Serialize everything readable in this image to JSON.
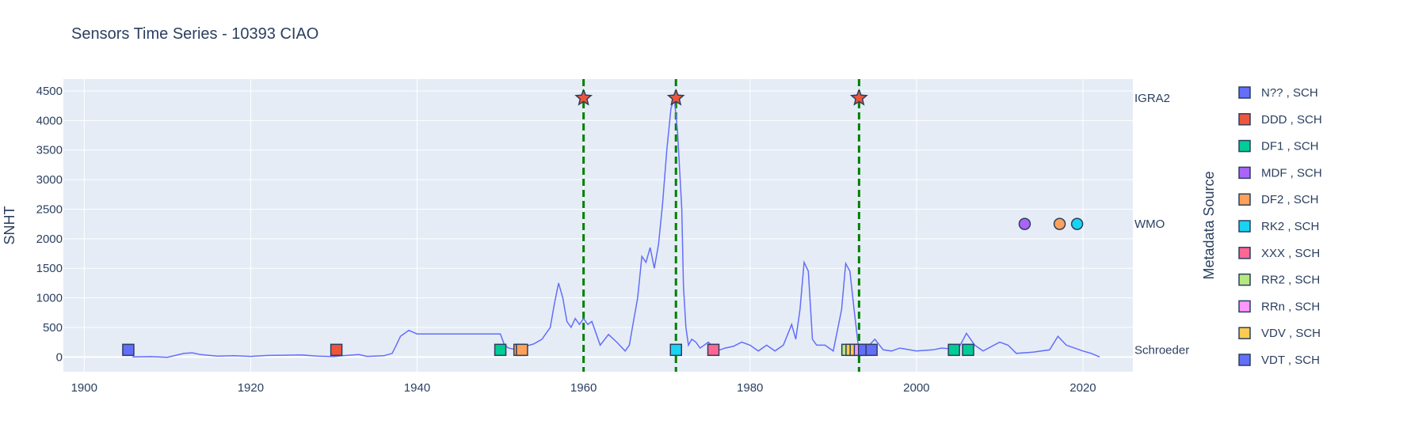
{
  "chart_data": {
    "type": "line",
    "title": "Sensors Time Series - 10393 CIAO",
    "xlabel": "",
    "ylabel": "SNHT",
    "xlim": [
      1897.5,
      2026
    ],
    "ylim": [
      -250,
      4700
    ],
    "x_ticks": [
      1900,
      1920,
      1940,
      1960,
      1980,
      2000,
      2020
    ],
    "y_ticks": [
      0,
      500,
      1000,
      1500,
      2000,
      2500,
      3000,
      3500,
      4000,
      4500
    ],
    "grid": true,
    "legend_title": "Metadata Source",
    "legend_position": "right",
    "colors": {
      "plot_bg": "#E5ECF6",
      "line": "#636EFA",
      "vline": "#008000",
      "marker_edge": "#2a3f5f"
    },
    "series": [
      {
        "type": "line",
        "points": [
          [
            1905.8,
            0
          ],
          [
            1908,
            5
          ],
          [
            1910,
            -5
          ],
          [
            1912,
            60
          ],
          [
            1913,
            70
          ],
          [
            1914,
            40
          ],
          [
            1916,
            15
          ],
          [
            1918,
            20
          ],
          [
            1920,
            10
          ],
          [
            1922,
            25
          ],
          [
            1924,
            30
          ],
          [
            1926,
            35
          ],
          [
            1928,
            15
          ],
          [
            1930,
            5
          ],
          [
            1931,
            20
          ],
          [
            1933,
            40
          ],
          [
            1934,
            10
          ],
          [
            1936,
            20
          ],
          [
            1937,
            60
          ],
          [
            1937.5,
            200
          ],
          [
            1938,
            350
          ],
          [
            1939,
            450
          ],
          [
            1940,
            390
          ],
          [
            1945,
            390
          ],
          [
            1950,
            390
          ],
          [
            1950.5,
            200
          ],
          [
            1951,
            150
          ],
          [
            1952,
            120
          ],
          [
            1953,
            180
          ],
          [
            1954,
            220
          ],
          [
            1955,
            300
          ],
          [
            1956,
            500
          ],
          [
            1956.5,
            900
          ],
          [
            1957,
            1250
          ],
          [
            1957.5,
            1000
          ],
          [
            1958,
            600
          ],
          [
            1958.5,
            500
          ],
          [
            1959,
            650
          ],
          [
            1959.5,
            550
          ],
          [
            1960,
            650
          ],
          [
            1960.5,
            550
          ],
          [
            1961,
            600
          ],
          [
            1962,
            200
          ],
          [
            1963,
            380
          ],
          [
            1964,
            250
          ],
          [
            1965,
            100
          ],
          [
            1965.5,
            200
          ],
          [
            1966,
            600
          ],
          [
            1966.5,
            1000
          ],
          [
            1967,
            1700
          ],
          [
            1967.5,
            1600
          ],
          [
            1968,
            1850
          ],
          [
            1968.5,
            1500
          ],
          [
            1969,
            1900
          ],
          [
            1969.5,
            2600
          ],
          [
            1970,
            3500
          ],
          [
            1970.5,
            4200
          ],
          [
            1970.9,
            4380
          ],
          [
            1971.3,
            3800
          ],
          [
            1971.8,
            2500
          ],
          [
            1972,
            1200
          ],
          [
            1972.3,
            500
          ],
          [
            1972.6,
            200
          ],
          [
            1973,
            300
          ],
          [
            1973.5,
            250
          ],
          [
            1974,
            150
          ],
          [
            1975,
            250
          ],
          [
            1976,
            100
          ],
          [
            1977,
            150
          ],
          [
            1978,
            180
          ],
          [
            1979,
            250
          ],
          [
            1980,
            200
          ],
          [
            1981,
            100
          ],
          [
            1982,
            200
          ],
          [
            1983,
            100
          ],
          [
            1984,
            200
          ],
          [
            1985,
            550
          ],
          [
            1985.5,
            300
          ],
          [
            1986,
            800
          ],
          [
            1986.5,
            1600
          ],
          [
            1987,
            1450
          ],
          [
            1987.5,
            300
          ],
          [
            1988,
            200
          ],
          [
            1989,
            200
          ],
          [
            1990,
            100
          ],
          [
            1991,
            800
          ],
          [
            1991.5,
            1580
          ],
          [
            1992,
            1450
          ],
          [
            1992.5,
            800
          ],
          [
            1993,
            200
          ],
          [
            1994,
            150
          ],
          [
            1995,
            300
          ],
          [
            1996,
            120
          ],
          [
            1997,
            100
          ],
          [
            1998,
            150
          ],
          [
            2000,
            100
          ],
          [
            2002,
            120
          ],
          [
            2003,
            150
          ],
          [
            2005,
            130
          ],
          [
            2006,
            400
          ],
          [
            2007,
            200
          ],
          [
            2008,
            100
          ],
          [
            2010,
            250
          ],
          [
            2011,
            200
          ],
          [
            2012,
            60
          ],
          [
            2014,
            80
          ],
          [
            2016,
            120
          ],
          [
            2017,
            350
          ],
          [
            2018,
            200
          ],
          [
            2020,
            100
          ],
          [
            2021,
            60
          ],
          [
            2022,
            0
          ]
        ]
      }
    ],
    "vlines": [
      1960,
      1971.1,
      1993.1
    ],
    "bands": [
      {
        "label": "IGRA2",
        "y": 4380
      },
      {
        "label": "WMO",
        "y": 2250
      },
      {
        "label": "Schroeder",
        "y": 120
      }
    ],
    "legend": [
      {
        "label": "N?? , SCH",
        "color": "#636EFA"
      },
      {
        "label": "DDD , SCH",
        "color": "#EF553B"
      },
      {
        "label": "DF1 , SCH",
        "color": "#00CC96"
      },
      {
        "label": "MDF , SCH",
        "color": "#AB63FA"
      },
      {
        "label": "DF2 , SCH",
        "color": "#FFA15A"
      },
      {
        "label": "RK2 , SCH",
        "color": "#19D3F3"
      },
      {
        "label": "XXX , SCH",
        "color": "#FF6692"
      },
      {
        "label": "RR2 , SCH",
        "color": "#B6E880"
      },
      {
        "label": "RRn , SCH",
        "color": "#FF97FF"
      },
      {
        "label": "VDV , SCH",
        "color": "#FECB52"
      },
      {
        "label": "VDT , SCH",
        "color": "#636EFA"
      }
    ],
    "markers": [
      {
        "x": 1960,
        "y": 4380,
        "symbol": "star",
        "color": "#EF553B"
      },
      {
        "x": 1971.1,
        "y": 4380,
        "symbol": "star",
        "color": "#EF553B"
      },
      {
        "x": 1993.1,
        "y": 4380,
        "symbol": "star",
        "color": "#EF553B"
      },
      {
        "x": 2013,
        "y": 2250,
        "symbol": "circle",
        "color": "#AB63FA"
      },
      {
        "x": 2017.2,
        "y": 2250,
        "symbol": "circle",
        "color": "#FFA15A"
      },
      {
        "x": 2019.3,
        "y": 2250,
        "symbol": "circle",
        "color": "#19D3F3"
      },
      {
        "x": 1905.3,
        "y": 120,
        "symbol": "square",
        "color": "#636EFA"
      },
      {
        "x": 1930.3,
        "y": 120,
        "symbol": "square",
        "color": "#EF553B"
      },
      {
        "x": 1950,
        "y": 120,
        "symbol": "square",
        "color": "#00CC96"
      },
      {
        "x": 1952.3,
        "y": 120,
        "symbol": "square",
        "color": "#FFA15A"
      },
      {
        "x": 1952.6,
        "y": 120,
        "symbol": "square",
        "color": "#FFA15A"
      },
      {
        "x": 1971.1,
        "y": 120,
        "symbol": "square",
        "color": "#19D3F3"
      },
      {
        "x": 1975.6,
        "y": 120,
        "symbol": "square",
        "color": "#FF6692"
      },
      {
        "x": 1991.7,
        "y": 120,
        "symbol": "square",
        "color": "#B6E880"
      },
      {
        "x": 1992.2,
        "y": 120,
        "symbol": "square",
        "color": "#FECB52"
      },
      {
        "x": 1992.7,
        "y": 120,
        "symbol": "square",
        "color": "#FECB52"
      },
      {
        "x": 1993.2,
        "y": 120,
        "symbol": "square",
        "color": "#FF97FF"
      },
      {
        "x": 1993.7,
        "y": 120,
        "symbol": "square",
        "color": "#636EFA"
      },
      {
        "x": 1994.6,
        "y": 120,
        "symbol": "square",
        "color": "#636EFA"
      },
      {
        "x": 2004.5,
        "y": 120,
        "symbol": "square",
        "color": "#00CC96"
      },
      {
        "x": 2006.2,
        "y": 120,
        "symbol": "square",
        "color": "#00CC96"
      }
    ]
  }
}
